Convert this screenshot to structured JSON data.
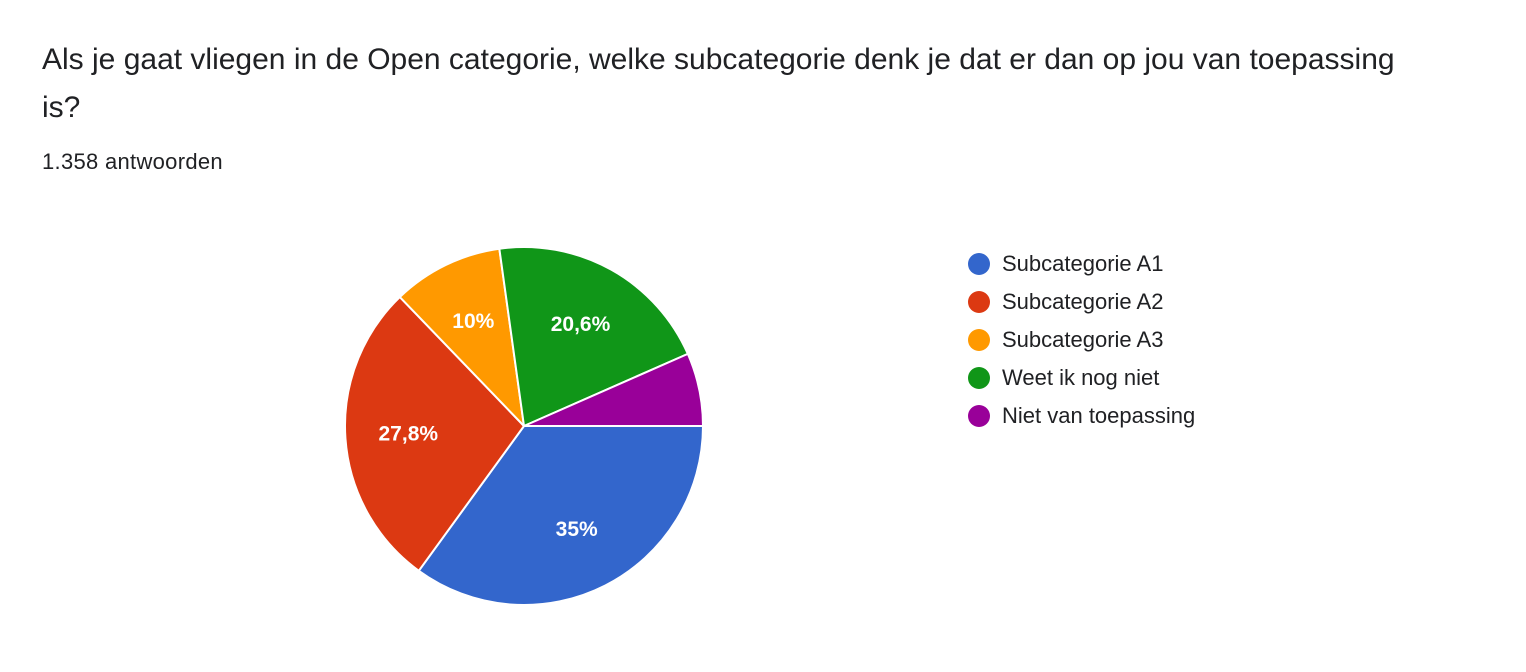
{
  "question": {
    "title": "Als je gaat vliegen in de Open categorie, welke subcategorie denk je dat er dan op jou van toepassing is?",
    "response_count": "1.358 antwoorden"
  },
  "chart_data": {
    "type": "pie",
    "title": "",
    "legend_position": "right",
    "slices": [
      {
        "name": "Subcategorie A1",
        "value": 35.0,
        "label": "35%",
        "color": "#3366cc"
      },
      {
        "name": "Subcategorie A2",
        "value": 27.8,
        "label": "27,8%",
        "color": "#dc3912"
      },
      {
        "name": "Subcategorie A3",
        "value": 10.0,
        "label": "10%",
        "color": "#ff9900"
      },
      {
        "name": "Weet ik nog niet",
        "value": 20.6,
        "label": "20,6%",
        "color": "#109618"
      },
      {
        "name": "Niet van toepassing",
        "value": 6.6,
        "label": "",
        "color": "#990099"
      }
    ]
  }
}
